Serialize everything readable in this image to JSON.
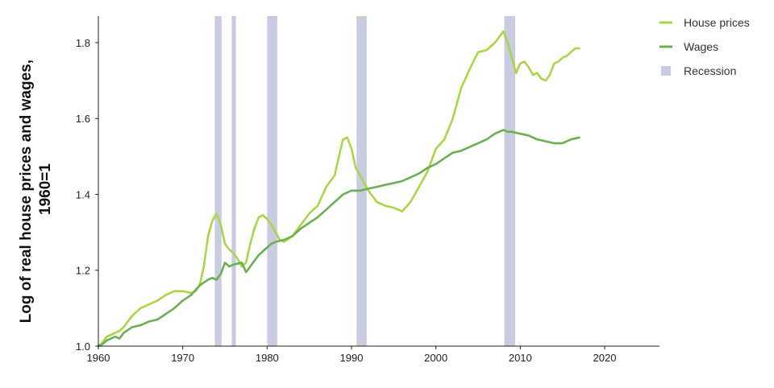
{
  "chart_data": {
    "type": "line",
    "ylabel": [
      "Log of real house prices and wages,",
      "1960=1"
    ],
    "xlabel": "",
    "xlim": [
      1960,
      2026.5
    ],
    "ylim": [
      1.0,
      1.87
    ],
    "x_ticks": [
      1960,
      1970,
      1980,
      1990,
      2000,
      2010,
      2020
    ],
    "y_ticks": [
      1.0,
      1.2,
      1.4,
      1.6,
      1.8
    ],
    "grid": false,
    "legend_position": "top-right",
    "legend": [
      {
        "label": "House prices",
        "kind": "line",
        "color": "#a8d648"
      },
      {
        "label": "Wages",
        "kind": "line",
        "color": "#6aaf52"
      },
      {
        "label": "Recession",
        "kind": "band",
        "color": "#c9cbe1"
      }
    ],
    "recessions": [
      [
        1973.8,
        1974.6
      ],
      [
        1975.8,
        1976.3
      ],
      [
        1980.0,
        1981.2
      ],
      [
        1990.6,
        1991.8
      ],
      [
        2008.1,
        2009.4
      ]
    ],
    "series": [
      {
        "name": "House prices",
        "color": "#a8d648",
        "points": [
          [
            1960,
            1.0
          ],
          [
            1960.5,
            1.01
          ],
          [
            1961,
            1.025
          ],
          [
            1961.5,
            1.03
          ],
          [
            1962,
            1.035
          ],
          [
            1962.5,
            1.04
          ],
          [
            1963,
            1.05
          ],
          [
            1964,
            1.08
          ],
          [
            1965,
            1.1
          ],
          [
            1966,
            1.11
          ],
          [
            1967,
            1.12
          ],
          [
            1968,
            1.135
          ],
          [
            1969,
            1.145
          ],
          [
            1970,
            1.145
          ],
          [
            1971,
            1.14
          ],
          [
            1971.5,
            1.145
          ],
          [
            1972,
            1.16
          ],
          [
            1972.5,
            1.21
          ],
          [
            1973,
            1.29
          ],
          [
            1973.5,
            1.33
          ],
          [
            1974,
            1.35
          ],
          [
            1974.5,
            1.32
          ],
          [
            1975,
            1.27
          ],
          [
            1975.5,
            1.255
          ],
          [
            1976,
            1.245
          ],
          [
            1976.5,
            1.23
          ],
          [
            1977,
            1.21
          ],
          [
            1977.5,
            1.22
          ],
          [
            1978,
            1.27
          ],
          [
            1978.5,
            1.31
          ],
          [
            1979,
            1.34
          ],
          [
            1979.5,
            1.345
          ],
          [
            1980,
            1.335
          ],
          [
            1980.5,
            1.32
          ],
          [
            1981,
            1.3
          ],
          [
            1981.5,
            1.28
          ],
          [
            1982,
            1.275
          ],
          [
            1983,
            1.29
          ],
          [
            1984,
            1.32
          ],
          [
            1985,
            1.35
          ],
          [
            1986,
            1.37
          ],
          [
            1987,
            1.42
          ],
          [
            1988,
            1.45
          ],
          [
            1988.5,
            1.5
          ],
          [
            1989,
            1.545
          ],
          [
            1989.5,
            1.55
          ],
          [
            1990,
            1.52
          ],
          [
            1990.5,
            1.47
          ],
          [
            1991,
            1.45
          ],
          [
            1992,
            1.41
          ],
          [
            1993,
            1.38
          ],
          [
            1994,
            1.37
          ],
          [
            1995,
            1.365
          ],
          [
            1996,
            1.355
          ],
          [
            1997,
            1.38
          ],
          [
            1998,
            1.42
          ],
          [
            1999,
            1.46
          ],
          [
            2000,
            1.52
          ],
          [
            2001,
            1.545
          ],
          [
            2002,
            1.6
          ],
          [
            2003,
            1.68
          ],
          [
            2004,
            1.73
          ],
          [
            2005,
            1.775
          ],
          [
            2006,
            1.78
          ],
          [
            2007,
            1.8
          ],
          [
            2008,
            1.83
          ],
          [
            2008.5,
            1.8
          ],
          [
            2009,
            1.76
          ],
          [
            2009.5,
            1.72
          ],
          [
            2010,
            1.745
          ],
          [
            2010.5,
            1.75
          ],
          [
            2011,
            1.735
          ],
          [
            2011.5,
            1.715
          ],
          [
            2012,
            1.72
          ],
          [
            2012.5,
            1.705
          ],
          [
            2013,
            1.7
          ],
          [
            2013.5,
            1.715
          ],
          [
            2014,
            1.745
          ],
          [
            2014.5,
            1.75
          ],
          [
            2015,
            1.76
          ],
          [
            2015.5,
            1.765
          ],
          [
            2016,
            1.775
          ],
          [
            2016.5,
            1.785
          ],
          [
            2017,
            1.785
          ]
        ]
      },
      {
        "name": "Wages",
        "color": "#6aaf52",
        "points": [
          [
            1960,
            1.0
          ],
          [
            1960.5,
            1.005
          ],
          [
            1961,
            1.015
          ],
          [
            1961.5,
            1.02
          ],
          [
            1962,
            1.025
          ],
          [
            1962.5,
            1.02
          ],
          [
            1963,
            1.035
          ],
          [
            1964,
            1.05
          ],
          [
            1965,
            1.055
          ],
          [
            1966,
            1.065
          ],
          [
            1967,
            1.07
          ],
          [
            1968,
            1.085
          ],
          [
            1969,
            1.1
          ],
          [
            1970,
            1.12
          ],
          [
            1971,
            1.135
          ],
          [
            1972,
            1.16
          ],
          [
            1973,
            1.175
          ],
          [
            1973.5,
            1.18
          ],
          [
            1974,
            1.175
          ],
          [
            1974.5,
            1.19
          ],
          [
            1975,
            1.22
          ],
          [
            1975.5,
            1.21
          ],
          [
            1976,
            1.215
          ],
          [
            1977,
            1.22
          ],
          [
            1977.5,
            1.195
          ],
          [
            1978,
            1.21
          ],
          [
            1978.5,
            1.225
          ],
          [
            1979,
            1.24
          ],
          [
            1980,
            1.26
          ],
          [
            1980.5,
            1.27
          ],
          [
            1981,
            1.275
          ],
          [
            1982,
            1.28
          ],
          [
            1983,
            1.29
          ],
          [
            1984,
            1.31
          ],
          [
            1985,
            1.325
          ],
          [
            1986,
            1.34
          ],
          [
            1987,
            1.36
          ],
          [
            1988,
            1.38
          ],
          [
            1989,
            1.4
          ],
          [
            1990,
            1.41
          ],
          [
            1991,
            1.41
          ],
          [
            1992,
            1.415
          ],
          [
            1993,
            1.42
          ],
          [
            1994,
            1.425
          ],
          [
            1995,
            1.43
          ],
          [
            1996,
            1.435
          ],
          [
            1997,
            1.445
          ],
          [
            1998,
            1.455
          ],
          [
            1999,
            1.47
          ],
          [
            2000,
            1.48
          ],
          [
            2001,
            1.495
          ],
          [
            2002,
            1.51
          ],
          [
            2003,
            1.515
          ],
          [
            2004,
            1.525
          ],
          [
            2005,
            1.535
          ],
          [
            2006,
            1.545
          ],
          [
            2007,
            1.56
          ],
          [
            2008,
            1.57
          ],
          [
            2008.5,
            1.565
          ],
          [
            2009,
            1.565
          ],
          [
            2010,
            1.56
          ],
          [
            2011,
            1.555
          ],
          [
            2012,
            1.545
          ],
          [
            2013,
            1.54
          ],
          [
            2014,
            1.535
          ],
          [
            2015,
            1.535
          ],
          [
            2016,
            1.545
          ],
          [
            2017,
            1.55
          ]
        ]
      }
    ]
  }
}
